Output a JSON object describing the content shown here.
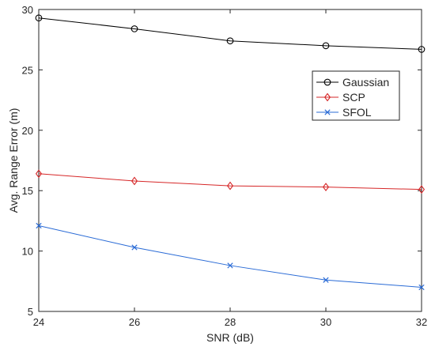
{
  "chart_data": {
    "type": "line",
    "title": "",
    "xlabel": "SNR (dB)",
    "ylabel": "Avg. Range Error (m)",
    "x": [
      24,
      26,
      28,
      30,
      32
    ],
    "xlim": [
      24,
      32
    ],
    "ylim": [
      5,
      30
    ],
    "xticks": [
      "24",
      "26",
      "28",
      "30",
      "32"
    ],
    "yticks": [
      "5",
      "10",
      "15",
      "20",
      "25",
      "30"
    ],
    "grid": false,
    "legend_position": "top-right",
    "series": [
      {
        "name": "Gaussian",
        "values": [
          29.3,
          28.4,
          27.4,
          27.0,
          26.7
        ],
        "color": "#000000",
        "marker": "circle"
      },
      {
        "name": "SCP",
        "values": [
          16.4,
          15.8,
          15.4,
          15.3,
          15.1
        ],
        "color": "#d62728",
        "marker": "diamond"
      },
      {
        "name": "SFOL",
        "values": [
          12.1,
          10.3,
          8.8,
          7.6,
          7.0
        ],
        "color": "#2a6bd6",
        "marker": "x"
      }
    ]
  }
}
